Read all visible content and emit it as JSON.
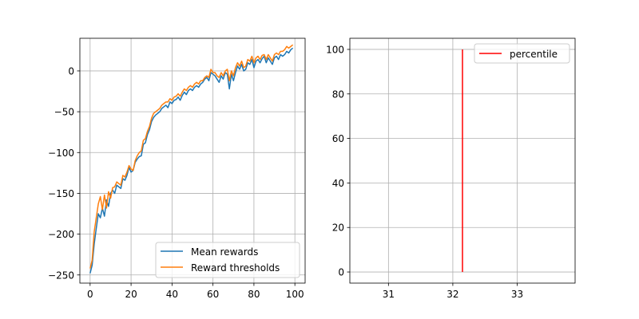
{
  "chart_data": [
    {
      "type": "line",
      "xlim": [
        -5,
        105
      ],
      "ylim": [
        -260,
        40
      ],
      "xticks": [
        0,
        20,
        40,
        60,
        80,
        100
      ],
      "yticks": [
        -250,
        -200,
        -150,
        -100,
        -50,
        0
      ],
      "xtick_labels": [
        "0",
        "20",
        "40",
        "60",
        "80",
        "100"
      ],
      "ytick_labels": [
        "−250",
        "−200",
        "−150",
        "−100",
        "−50",
        "0"
      ],
      "grid": true,
      "legend_position": "lower-right",
      "series": [
        {
          "name": "Mean rewards",
          "color": "#1f77b4",
          "x": [
            0,
            1,
            2,
            3,
            4,
            5,
            6,
            7,
            8,
            9,
            10,
            11,
            12,
            13,
            14,
            15,
            16,
            17,
            18,
            19,
            20,
            21,
            22,
            23,
            24,
            25,
            26,
            27,
            28,
            29,
            30,
            31,
            32,
            33,
            34,
            35,
            36,
            37,
            38,
            39,
            40,
            41,
            42,
            43,
            44,
            45,
            46,
            47,
            48,
            49,
            50,
            51,
            52,
            53,
            54,
            55,
            56,
            57,
            58,
            59,
            60,
            61,
            62,
            63,
            64,
            65,
            66,
            67,
            68,
            69,
            70,
            71,
            72,
            73,
            74,
            75,
            76,
            77,
            78,
            79,
            80,
            81,
            82,
            83,
            84,
            85,
            86,
            87,
            88,
            89,
            90,
            91,
            92,
            93,
            94,
            95,
            96,
            97,
            98,
            99
          ],
          "values": [
            -248,
            -238,
            -212,
            -193,
            -175,
            -180,
            -168,
            -178,
            -158,
            -166,
            -150,
            -146,
            -150,
            -140,
            -142,
            -144,
            -132,
            -134,
            -128,
            -118,
            -124,
            -122,
            -112,
            -108,
            -105,
            -104,
            -90,
            -88,
            -78,
            -72,
            -62,
            -57,
            -54,
            -52,
            -50,
            -46,
            -44,
            -42,
            -45,
            -38,
            -40,
            -36,
            -35,
            -32,
            -36,
            -30,
            -26,
            -29,
            -24,
            -22,
            -24,
            -20,
            -18,
            -20,
            -16,
            -14,
            -10,
            -8,
            -12,
            -2,
            -4,
            -6,
            -10,
            -14,
            -6,
            -10,
            -2,
            -4,
            -22,
            -4,
            -12,
            -2,
            6,
            2,
            8,
            0,
            2,
            10,
            8,
            14,
            4,
            12,
            14,
            10,
            15,
            18,
            10,
            16,
            12,
            8,
            16,
            18,
            14,
            20,
            18,
            20,
            24,
            22,
            26,
            28
          ]
        },
        {
          "name": "Reward thresholds",
          "color": "#ff7f0e",
          "x": [
            0,
            1,
            2,
            3,
            4,
            5,
            6,
            7,
            8,
            9,
            10,
            11,
            12,
            13,
            14,
            15,
            16,
            17,
            18,
            19,
            20,
            21,
            22,
            23,
            24,
            25,
            26,
            27,
            28,
            29,
            30,
            31,
            32,
            33,
            34,
            35,
            36,
            37,
            38,
            39,
            40,
            41,
            42,
            43,
            44,
            45,
            46,
            47,
            48,
            49,
            50,
            51,
            52,
            53,
            54,
            55,
            56,
            57,
            58,
            59,
            60,
            61,
            62,
            63,
            64,
            65,
            66,
            67,
            68,
            69,
            70,
            71,
            72,
            73,
            74,
            75,
            76,
            77,
            78,
            79,
            80,
            81,
            82,
            83,
            84,
            85,
            86,
            87,
            88,
            89,
            90,
            91,
            92,
            93,
            94,
            95,
            96,
            97,
            98,
            99
          ],
          "values": [
            -242,
            -232,
            -197,
            -180,
            -163,
            -154,
            -170,
            -152,
            -168,
            -148,
            -156,
            -143,
            -142,
            -136,
            -138,
            -140,
            -128,
            -130,
            -124,
            -116,
            -120,
            -122,
            -110,
            -104,
            -100,
            -98,
            -85,
            -83,
            -74,
            -68,
            -58,
            -52,
            -50,
            -48,
            -46,
            -42,
            -40,
            -38,
            -38,
            -34,
            -36,
            -32,
            -31,
            -28,
            -31,
            -26,
            -22,
            -24,
            -20,
            -18,
            -20,
            -16,
            -14,
            -16,
            -12,
            -12,
            -8,
            -6,
            -8,
            2,
            -2,
            -2,
            -6,
            -8,
            -2,
            -6,
            0,
            2,
            -12,
            0,
            -6,
            4,
            10,
            6,
            12,
            4,
            6,
            14,
            12,
            18,
            10,
            16,
            18,
            14,
            19,
            20,
            14,
            20,
            16,
            12,
            20,
            22,
            20,
            24,
            24,
            26,
            30,
            28,
            30,
            32
          ]
        }
      ]
    },
    {
      "type": "line",
      "xlim": [
        30.4,
        33.9
      ],
      "ylim": [
        -5,
        105
      ],
      "xticks": [
        31,
        32,
        33
      ],
      "yticks": [
        0,
        20,
        40,
        60,
        80,
        100
      ],
      "xtick_labels": [
        "31",
        "32",
        "33"
      ],
      "ytick_labels": [
        "0",
        "20",
        "40",
        "60",
        "80",
        "100"
      ],
      "grid": true,
      "legend_position": "top-right",
      "series": [
        {
          "name": "percentile",
          "color": "#ff0000",
          "x": [
            32.15,
            32.15
          ],
          "values": [
            0,
            100
          ]
        }
      ]
    }
  ]
}
